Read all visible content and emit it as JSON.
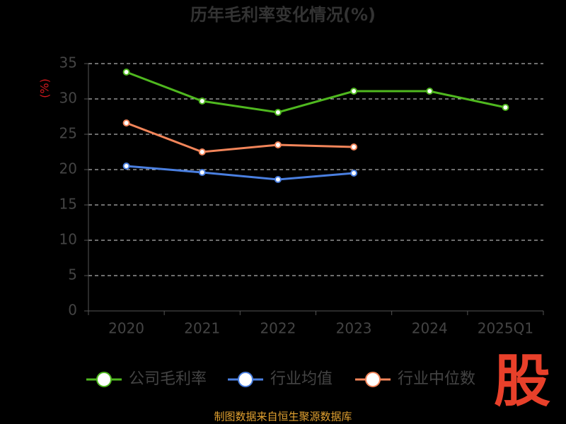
{
  "chart_data": {
    "type": "line",
    "title": "历年毛利率变化情况(%)",
    "y_label": "(%)",
    "categories": [
      "2020",
      "2021",
      "2022",
      "2023",
      "2024",
      "2025Q1"
    ],
    "series": [
      {
        "name": "公司毛利率",
        "color": "#4fb81f",
        "values": [
          33.8,
          29.7,
          28.1,
          31.1,
          31.1,
          28.8
        ]
      },
      {
        "name": "行业均值",
        "color": "#4a7fe0",
        "values": [
          20.5,
          19.6,
          18.6,
          19.5,
          null,
          null
        ]
      },
      {
        "name": "行业中位数",
        "color": "#f2855a",
        "values": [
          26.6,
          22.5,
          23.5,
          23.2,
          null,
          null
        ]
      }
    ],
    "ylim": [
      0,
      35
    ],
    "yticks": [
      0,
      5,
      10,
      15,
      20,
      25,
      30,
      35
    ],
    "grid": true
  },
  "footer": {
    "source": "制图数据来自恒生聚源数据库",
    "logo": "股"
  }
}
